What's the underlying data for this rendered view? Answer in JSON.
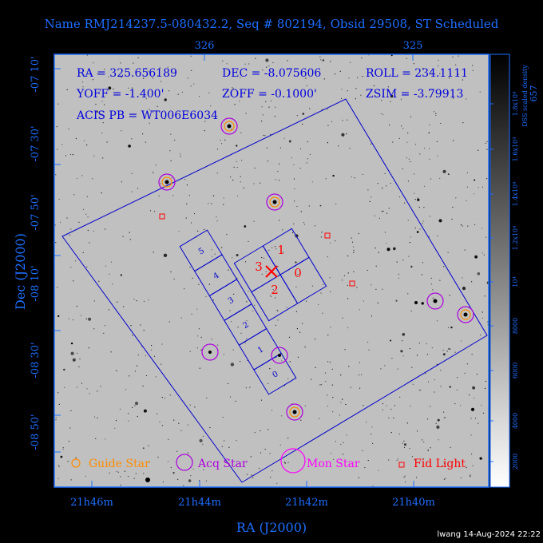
{
  "title": "Name RMJ214237.5-080432.2, Seq # 802194, Obsid 29508, ST Scheduled",
  "top_ticks": [
    "326",
    "325"
  ],
  "bottom_ticks": [
    "21h46m",
    "21h44m",
    "21h42m",
    "21h40m"
  ],
  "left_ticks": [
    "-07 10'",
    "-07 30'",
    "-07 50'",
    "-08 10'",
    "-08 30'",
    "-08 50'"
  ],
  "xlabel": "RA (J2000)",
  "ylabel": "Dec (J2000)",
  "info": {
    "ra": "RA = 325.656189",
    "dec": "DEC = -8.075606",
    "roll": "ROLL = 234.1111",
    "yoff": "YOFF = -1.400'",
    "zoff": "ZOFF = -0.1000'",
    "zsim": "ZSIM = -3.79913",
    "pb": "ACIS PB = WT006E6034"
  },
  "legend": {
    "guide": "Guide Star",
    "acq": "Acq Star",
    "mon": "Mon Star",
    "fid": "Fid Light"
  },
  "colorbar": {
    "label": "DSS scaled density",
    "ticks": [
      "2000",
      "4000",
      "6000",
      "8000",
      "10⁴",
      "1.2x10⁴",
      "1.4x10⁴",
      "1.6x10⁴",
      "1.8x10⁴"
    ],
    "edge_text": "657"
  },
  "acis_s_chips": [
    "5",
    "4",
    "3",
    "2",
    "1",
    "0"
  ],
  "acis_i_chips": [
    "1",
    "0",
    "3",
    "2"
  ],
  "footer": "lwang 14-Aug-2024 22:22",
  "colors": {
    "frame": "#1e6fff",
    "field": "#0000cc",
    "fid": "#ff0000",
    "acq": "#cc00cc",
    "guide": "#ff8c00",
    "mon": "#ff00ff"
  }
}
